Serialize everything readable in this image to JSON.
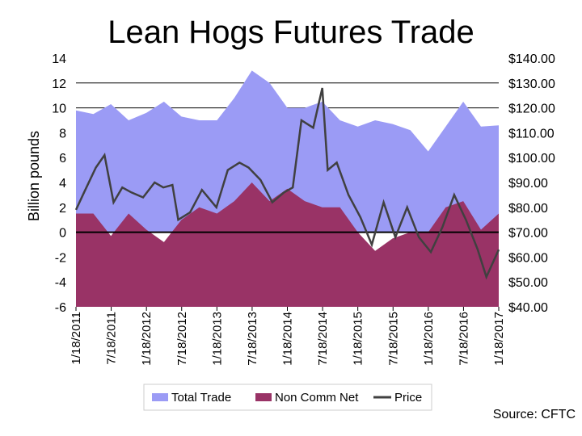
{
  "chart_data": {
    "type": "area",
    "title": "Lean Hogs Futures Trade",
    "ylabel": "Billion pounds",
    "ylabel_right": "",
    "ylim": [
      -6,
      14
    ],
    "y_ticks": [
      "14",
      "12",
      "10",
      "8",
      "6",
      "4",
      "2",
      "0",
      "-2",
      "-4",
      "-6"
    ],
    "y2lim": [
      40,
      140
    ],
    "y2_ticks": [
      "$140.00",
      "$130.00",
      "$120.00",
      "$110.00",
      "$100.00",
      "$90.00",
      "$80.00",
      "$70.00",
      "$60.00",
      "$50.00",
      "$40.00"
    ],
    "x_ticks": [
      "1/18/2011",
      "7/18/2011",
      "1/18/2012",
      "7/18/2012",
      "1/18/2013",
      "7/18/2013",
      "1/18/2014",
      "7/18/2014",
      "1/18/2015",
      "7/18/2015",
      "1/18/2016",
      "7/18/2016",
      "1/18/2017"
    ],
    "legend_position": "bottom",
    "grid": "horizontal gridlines at 10 and 12",
    "colors": {
      "total": "#9b9bf5",
      "noncomm": "#993366",
      "price": "#404040",
      "zero": "#000000"
    },
    "series": [
      {
        "name": "Total Trade",
        "kind": "area",
        "axis": "left",
        "x": [
          "2011-01-18",
          "2011-04-18",
          "2011-07-18",
          "2011-10-18",
          "2012-01-18",
          "2012-04-18",
          "2012-07-18",
          "2012-10-18",
          "2013-01-18",
          "2013-04-18",
          "2013-07-18",
          "2013-10-18",
          "2014-01-18",
          "2014-04-18",
          "2014-07-18",
          "2014-10-18",
          "2015-01-18",
          "2015-04-18",
          "2015-07-18",
          "2015-10-18",
          "2016-01-18",
          "2016-04-18",
          "2016-07-18",
          "2016-10-18",
          "2017-01-18"
        ],
        "values": [
          9.8,
          9.5,
          10.3,
          9.0,
          9.6,
          10.5,
          9.3,
          9.0,
          9.0,
          10.8,
          13.0,
          12.0,
          10.0,
          10.0,
          10.5,
          9.0,
          8.5,
          9.0,
          8.7,
          8.2,
          6.5,
          8.5,
          10.5,
          8.5,
          8.6
        ]
      },
      {
        "name": "Non Comm Net",
        "kind": "area",
        "axis": "left",
        "x": [
          "2011-01-18",
          "2011-04-18",
          "2011-07-18",
          "2011-10-18",
          "2012-01-18",
          "2012-04-18",
          "2012-07-18",
          "2012-10-18",
          "2013-01-18",
          "2013-04-18",
          "2013-07-18",
          "2013-10-18",
          "2014-01-18",
          "2014-04-18",
          "2014-07-18",
          "2014-10-18",
          "2015-01-18",
          "2015-04-18",
          "2015-07-18",
          "2015-10-18",
          "2016-01-18",
          "2016-04-18",
          "2016-07-18",
          "2016-10-18",
          "2017-01-18"
        ],
        "values": [
          1.5,
          1.5,
          -0.3,
          1.5,
          0.2,
          -0.8,
          1.0,
          2.0,
          1.5,
          2.5,
          4.0,
          2.5,
          3.5,
          2.5,
          2.0,
          2.0,
          0.0,
          -1.5,
          -0.5,
          0.0,
          0.0,
          2.0,
          2.5,
          0.2,
          1.5
        ]
      },
      {
        "name": "Price",
        "kind": "line",
        "axis": "right",
        "x": [
          "2011-01-18",
          "2011-03-01",
          "2011-05-01",
          "2011-06-15",
          "2011-08-01",
          "2011-09-15",
          "2011-11-01",
          "2012-01-01",
          "2012-03-01",
          "2012-04-15",
          "2012-06-01",
          "2012-07-01",
          "2012-09-01",
          "2012-11-01",
          "2013-01-15",
          "2013-03-15",
          "2013-05-15",
          "2013-07-01",
          "2013-09-01",
          "2013-11-01",
          "2014-01-01",
          "2014-02-15",
          "2014-04-01",
          "2014-06-01",
          "2014-07-18",
          "2014-08-15",
          "2014-10-01",
          "2014-12-01",
          "2015-02-01",
          "2015-04-01",
          "2015-06-01",
          "2015-08-01",
          "2015-10-01",
          "2015-12-01",
          "2016-02-01",
          "2016-04-01",
          "2016-06-01",
          "2016-08-01",
          "2016-10-01",
          "2016-11-15",
          "2017-01-18"
        ],
        "values": [
          79,
          86,
          96,
          101,
          82,
          88,
          86,
          84,
          90,
          88,
          89,
          75,
          78,
          87,
          80,
          95,
          98,
          96,
          91,
          82,
          86,
          88,
          115,
          112,
          128,
          95,
          98,
          85,
          76,
          65,
          82,
          68,
          80,
          68,
          62,
          72,
          85,
          75,
          63,
          52,
          63
        ]
      }
    ]
  }
}
